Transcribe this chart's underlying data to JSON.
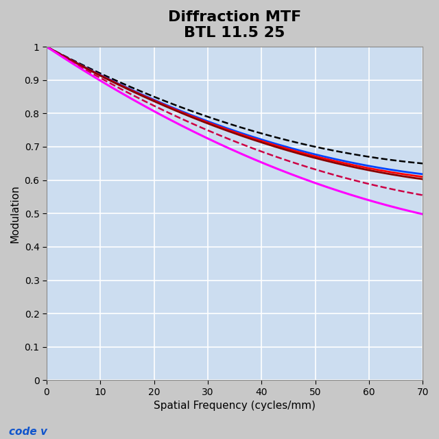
{
  "title": "Diffraction MTF\nBTL 11.5 25",
  "xlabel": "Spatial Frequency (cycles/mm)",
  "ylabel": "Modulation",
  "xlim": [
    0,
    70
  ],
  "ylim": [
    0,
    1
  ],
  "xticks": [
    0,
    10,
    20,
    30,
    40,
    50,
    60,
    70
  ],
  "yticks": [
    0,
    0.1,
    0.2,
    0.3,
    0.4,
    0.5,
    0.6,
    0.7,
    0.8,
    0.9,
    1
  ],
  "plot_bg": "#ccddf0",
  "outer_bg": "#c8c8c8",
  "curves": [
    {
      "color": "#000000",
      "linestyle": "--",
      "linewidth": 1.8,
      "end_val": 0.65,
      "diverge_start": 0.0
    },
    {
      "color": "#0044ff",
      "linestyle": "-",
      "linewidth": 2.0,
      "end_val": 0.618,
      "diverge_start": 0.0
    },
    {
      "color": "#ff0000",
      "linestyle": "-",
      "linewidth": 2.0,
      "end_val": 0.61,
      "diverge_start": 0.0
    },
    {
      "color": "#880000",
      "linestyle": "-",
      "linewidth": 2.0,
      "end_val": 0.603,
      "diverge_start": 0.0
    },
    {
      "color": "#cc0044",
      "linestyle": "--",
      "linewidth": 1.8,
      "end_val": 0.555,
      "diverge_start": 0.0
    },
    {
      "color": "#ff00ff",
      "linestyle": "-",
      "linewidth": 2.2,
      "end_val": 0.498,
      "diverge_start": 0.0
    }
  ],
  "codex_color": "#1155cc",
  "title_fontsize": 16,
  "label_fontsize": 11,
  "tick_fontsize": 10
}
